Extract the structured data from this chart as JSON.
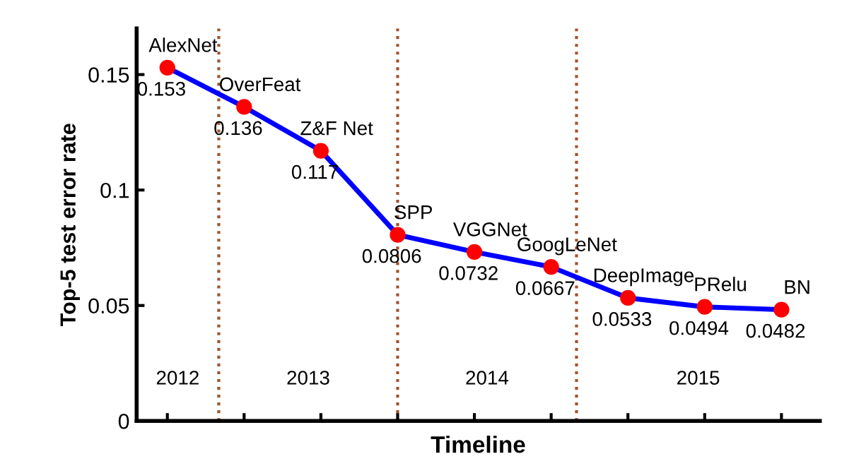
{
  "chart_data": {
    "type": "line",
    "xlabel": "Timeline",
    "ylabel": "Top-5 test error rate",
    "categories": [
      null,
      null,
      null,
      null,
      null,
      null,
      null,
      null,
      null
    ],
    "series": [
      {
        "color": "#0000ff",
        "colors": [
          "#ff0000",
          "#ff0000",
          "#ff0000",
          "#ff0000",
          "#ff0000",
          "#ff0000",
          "#ff0000",
          "#ff0000",
          "#ff0000"
        ],
        "values": [
          0.153,
          0.136,
          0.117,
          0.0806,
          0.0732,
          0.0667,
          0.0533,
          0.0494,
          0.0482
        ]
      }
    ],
    "annotations": [
      "AlexNet",
      "OverFeat",
      "Z&F Net",
      "SPP",
      "VGGNet",
      "GoogLeNet",
      "DeepImage",
      "PRelu",
      "BN",
      "2012",
      "2013",
      "2014",
      "2015"
    ],
    "data_labels": true,
    "marker": "circle",
    "line_style": "solid",
    "ylim": [
      0,
      0.17
    ],
    "yticks": [
      0,
      0.05,
      0.1,
      0.15
    ],
    "grid": false
  }
}
